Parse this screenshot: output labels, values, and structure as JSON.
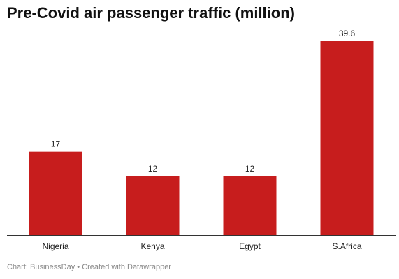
{
  "title": "Pre-Covid air passenger traffic (million)",
  "footer": {
    "source": "Chart: BusinessDay",
    "separator": " • ",
    "credit": "Created with Datawrapper"
  },
  "colors": {
    "bar": "#c71d1d",
    "axis": "#333333"
  },
  "chart_data": {
    "type": "bar",
    "title": "Pre-Covid air passenger traffic (million)",
    "categories": [
      "Nigeria",
      "Kenya",
      "Egypt",
      "S.Africa"
    ],
    "values": [
      17,
      12,
      12,
      39.6
    ],
    "value_labels": [
      "17",
      "12",
      "12",
      "39.6"
    ],
    "xlabel": "",
    "ylabel": "",
    "ylim": [
      0,
      39.6
    ],
    "grid": false,
    "legend": "none"
  }
}
